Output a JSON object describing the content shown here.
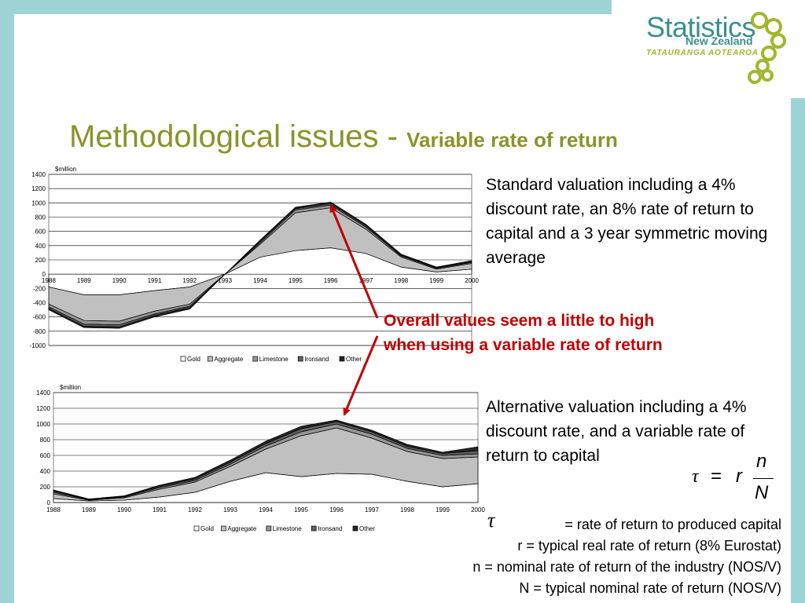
{
  "logo": {
    "line1": "Statistics",
    "line2": "New Zealand",
    "line3": "TATAURANGA AOTEAROA"
  },
  "title": {
    "main": "Methodological issues - ",
    "sub": "Variable rate of return"
  },
  "text_standard": "Standard valuation including a 4% discount rate, an 8% rate of return to capital and a 3 year symmetric moving average",
  "text_alternative": "Alternative valuation including a 4% discount rate, and a variable rate of return to capital",
  "note": {
    "line1": "Overall values seem a little to high",
    "line2": "when using a variable rate of return"
  },
  "formula": {
    "lhs": "τ",
    "eq": "=",
    "r": "r",
    "num": "n",
    "den": "N"
  },
  "definitions": {
    "tau_symbol": "τ",
    "tau": "= rate of return to produced capital",
    "r": "r = typical real rate of return (8% Eurostat)",
    "n": "n = nominal rate of return of the industry (NOS/V)",
    "N": "N = typical nominal rate of return (NOS/V)"
  },
  "colors": {
    "title": "#8c922a",
    "note": "#c00000",
    "teal": "#3b8f8e",
    "border": "#9ed3d6"
  },
  "chart_data": [
    {
      "type": "area",
      "stacked": true,
      "ylabel": "$million",
      "ylim": [
        -1000,
        1400
      ],
      "yticks": [
        1400,
        1200,
        1000,
        800,
        600,
        400,
        200,
        0,
        -200,
        -400,
        -600,
        -800,
        -1000
      ],
      "x": [
        "1988",
        "1989",
        "1990",
        "1991",
        "1992",
        "1993",
        "1994",
        "1995",
        "1996",
        "1997",
        "1998",
        "1999",
        "2000"
      ],
      "legend": "bottom",
      "series": [
        {
          "name": "Gold",
          "color": "#ffffff",
          "values": [
            -180,
            -290,
            -290,
            -230,
            -180,
            0,
            240,
            330,
            370,
            290,
            100,
            30,
            70
          ]
        },
        {
          "name": "Aggregate",
          "color": "#c0c0c0",
          "values": [
            -240,
            -360,
            -370,
            -290,
            -240,
            0,
            180,
            530,
            560,
            340,
            140,
            40,
            80
          ]
        },
        {
          "name": "Limestone",
          "color": "#969696",
          "values": [
            -40,
            -50,
            -50,
            -40,
            -30,
            0,
            20,
            40,
            40,
            30,
            15,
            10,
            15
          ]
        },
        {
          "name": "Ironsand",
          "color": "#606060",
          "values": [
            -20,
            -30,
            -30,
            -20,
            -20,
            0,
            20,
            20,
            20,
            20,
            10,
            10,
            10
          ]
        },
        {
          "name": "Other",
          "color": "#262626",
          "values": [
            -20,
            -20,
            -20,
            -20,
            -20,
            0,
            20,
            20,
            20,
            20,
            15,
            10,
            15
          ]
        }
      ]
    },
    {
      "type": "area",
      "stacked": true,
      "ylabel": "$million",
      "ylim": [
        0,
        1400
      ],
      "yticks": [
        1400,
        1200,
        1000,
        800,
        600,
        400,
        200,
        0
      ],
      "x": [
        "1988",
        "1989",
        "1990",
        "1991",
        "1992",
        "1993",
        "1994",
        "1995",
        "1996",
        "1997",
        "1998",
        "1999",
        "2000"
      ],
      "legend": "bottom",
      "series": [
        {
          "name": "Gold",
          "color": "#ffffff",
          "values": [
            50,
            20,
            30,
            70,
            130,
            270,
            380,
            330,
            370,
            360,
            270,
            200,
            240
          ]
        },
        {
          "name": "Aggregate",
          "color": "#c0c0c0",
          "values": [
            60,
            10,
            30,
            100,
            130,
            190,
            300,
            520,
            580,
            460,
            380,
            360,
            340
          ]
        },
        {
          "name": "Limestone",
          "color": "#969696",
          "values": [
            20,
            5,
            10,
            20,
            20,
            30,
            40,
            50,
            50,
            50,
            40,
            40,
            40
          ]
        },
        {
          "name": "Ironsand",
          "color": "#606060",
          "values": [
            15,
            5,
            8,
            15,
            20,
            25,
            30,
            40,
            30,
            30,
            25,
            25,
            40
          ]
        },
        {
          "name": "Other",
          "color": "#262626",
          "values": [
            15,
            5,
            7,
            15,
            20,
            25,
            30,
            30,
            20,
            20,
            25,
            15,
            50
          ]
        }
      ]
    }
  ]
}
